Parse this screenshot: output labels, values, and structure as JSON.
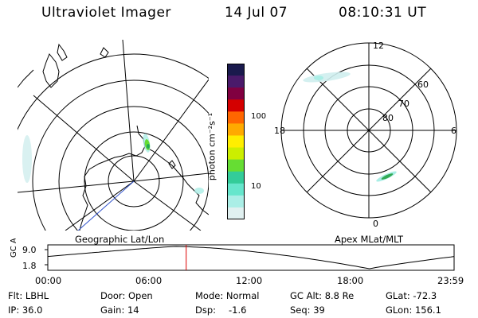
{
  "header": {
    "title": "Ultraviolet Imager",
    "date": "14 Jul 07",
    "time": "08:10:31 UT"
  },
  "colorbar": {
    "unit_label": "photon cm⁻²s⁻¹",
    "tick_labels": [
      "100",
      "10"
    ],
    "colors": [
      "#1a1a4d",
      "#4a1a6a",
      "#800040",
      "#d40000",
      "#ff6600",
      "#ffaa00",
      "#ffee00",
      "#ccee00",
      "#66dd33",
      "#33cc99",
      "#66e6cc",
      "#aaeee6",
      "#e0f0f0"
    ]
  },
  "left_map": {
    "label": "Geographic Lat/Lon"
  },
  "right_map": {
    "label": "Apex MLat/MLT",
    "mlt_labels": [
      "12",
      "6",
      "0",
      "18"
    ],
    "lat_labels": [
      "60",
      "70",
      "80"
    ]
  },
  "timeline": {
    "ylabel": "GC Alt",
    "y_ticks": [
      "9.0",
      "1.8"
    ],
    "x_ticks": [
      "00:00",
      "06:00",
      "12:00",
      "18:00",
      "23:59"
    ],
    "current_marker_color": "#dd0000"
  },
  "info": {
    "flt": "Flt: LBHL",
    "ip": "IP: 36.0",
    "door": "Door: Open",
    "gain": "Gain: 14",
    "mode": "Mode: Normal",
    "dsp_label": "Dsp:",
    "dsp_value": "-1.6",
    "gc_alt": "GC Alt: 8.8 Re",
    "seq": "Seq: 39",
    "glat": "GLat: -72.3",
    "glon": "GLon: 156.1"
  }
}
